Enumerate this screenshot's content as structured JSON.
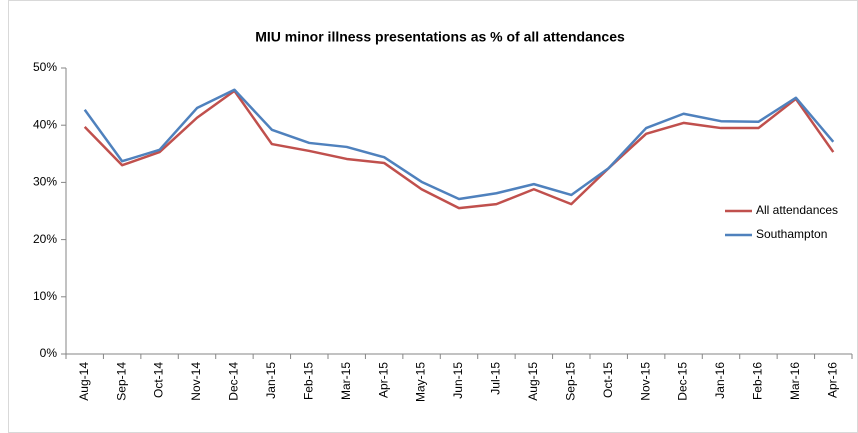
{
  "chart_data": {
    "type": "line",
    "title": "MIU minor illness presentations as % of all attendances",
    "categories": [
      "Aug-14",
      "Sep-14",
      "Oct-14",
      "Nov-14",
      "Dec-14",
      "Jan-15",
      "Feb-15",
      "Mar-15",
      "Apr-15",
      "May-15",
      "Jun-15",
      "Jul-15",
      "Aug-15",
      "Sep-15",
      "Oct-15",
      "Nov-15",
      "Dec-15",
      "Jan-16",
      "Feb-16",
      "Mar-16",
      "Apr-16"
    ],
    "series": [
      {
        "name": "All attendances",
        "color": "#c0504d",
        "values": [
          39.7,
          33.0,
          35.3,
          41.3,
          46.0,
          36.7,
          35.5,
          34.1,
          33.4,
          28.8,
          25.5,
          26.2,
          28.8,
          26.2,
          32.5,
          38.5,
          40.4,
          39.5,
          39.5,
          44.6,
          35.3
        ]
      },
      {
        "name": "Southampton",
        "color": "#4f81bd",
        "values": [
          42.7,
          33.7,
          35.7,
          43.0,
          46.2,
          39.2,
          36.9,
          36.2,
          34.4,
          30.1,
          27.1,
          28.1,
          29.7,
          27.8,
          32.5,
          39.5,
          42.0,
          40.7,
          40.6,
          44.8,
          37.1
        ]
      }
    ],
    "ylim": [
      0,
      50
    ],
    "yticks": [
      {
        "value": 0,
        "label": "0%"
      },
      {
        "value": 10,
        "label": "10%"
      },
      {
        "value": 20,
        "label": "20%"
      },
      {
        "value": 30,
        "label": "30%"
      },
      {
        "value": 40,
        "label": "40%"
      },
      {
        "value": 50,
        "label": "50%"
      }
    ],
    "grid": false,
    "legend": "right"
  }
}
